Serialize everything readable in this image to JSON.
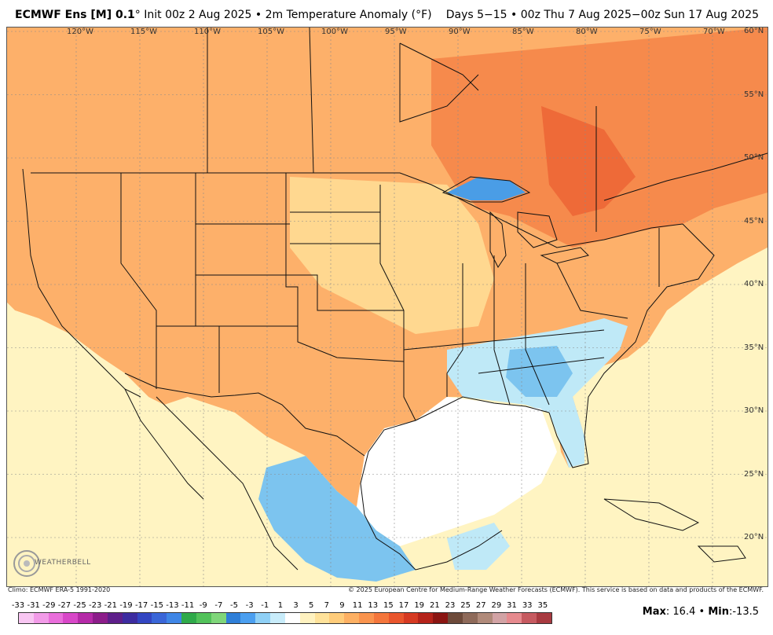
{
  "header": {
    "model": "ECMWF Ens [M] 0.1",
    "init_text": "° Init 00z 2 Aug 2025 • 2m Temperature Anomaly (°F)",
    "period": "Days 5−15 • 00z Thu 7 Aug 2025−00z Sun 17 Aug 2025"
  },
  "map": {
    "longitude_labels": [
      {
        "text": "120°W",
        "lon": -120
      },
      {
        "text": "115°W",
        "lon": -115
      },
      {
        "text": "110°W",
        "lon": -110
      },
      {
        "text": "105°W",
        "lon": -105
      },
      {
        "text": "100°W",
        "lon": -100
      },
      {
        "text": "95°W",
        "lon": -95
      },
      {
        "text": "90°W",
        "lon": -90
      },
      {
        "text": "85°W",
        "lon": -85
      },
      {
        "text": "80°W",
        "lon": -80
      },
      {
        "text": "75°W",
        "lon": -75
      },
      {
        "text": "70°W",
        "lon": -70
      }
    ],
    "latitude_labels": [
      {
        "text": "60°N",
        "lat": 60
      },
      {
        "text": "55°N",
        "lat": 55
      },
      {
        "text": "50°N",
        "lat": 50
      },
      {
        "text": "45°N",
        "lat": 45
      },
      {
        "text": "40°N",
        "lat": 40
      },
      {
        "text": "35°N",
        "lat": 35
      },
      {
        "text": "30°N",
        "lat": 30
      },
      {
        "text": "25°N",
        "lat": 25
      },
      {
        "text": "20°N",
        "lat": 20
      }
    ],
    "colors": {
      "ocean_neutral": "#fff4c2",
      "warm_light": "#ffd890",
      "warm": "#fdb06a",
      "warm_strong": "#f68a4c",
      "hot": "#ee6a38",
      "cool_light": "#bfe9f7",
      "cool": "#7cc4ef",
      "cool_strong": "#4a9de6",
      "neutral": "#ffffff"
    }
  },
  "footer": {
    "climo": "Climo: ECMWF ERA-5 1991-2020",
    "copyright": "© 2025 European Centre for Medium-Range Weather Forecasts (ECMWF). This service is based on data and products of the ECMWF."
  },
  "logo": {
    "text": "WEATHERBELL"
  },
  "scale": {
    "labels": [
      "-33",
      "-31",
      "-29",
      "-27",
      "-25",
      "-23",
      "-21",
      "-19",
      "-17",
      "-15",
      "-13",
      "-11",
      "-9",
      "-7",
      "-5",
      "-3",
      "-1",
      "1",
      "3",
      "5",
      "7",
      "9",
      "11",
      "13",
      "15",
      "17",
      "19",
      "21",
      "23",
      "25",
      "27",
      "29",
      "31",
      "33",
      "35"
    ],
    "colors": [
      "#f8c6f2",
      "#f29be8",
      "#e96edb",
      "#d847c8",
      "#b52aa8",
      "#8c1d8a",
      "#5e1f8a",
      "#3d2ca0",
      "#3346c2",
      "#3a66d8",
      "#3f86e6",
      "#2faa4a",
      "#52c25a",
      "#7fd67a",
      "#2f7fd8",
      "#4b9ff0",
      "#8fd0f6",
      "#c8ecfa",
      "#ffffff",
      "#fff2c0",
      "#ffe29a",
      "#ffcc7a",
      "#fdb063",
      "#fa944e",
      "#f4763c",
      "#e9562d",
      "#d63a22",
      "#b5231a",
      "#8a1512",
      "#6d4a3a",
      "#8e6a5a",
      "#b08a7a",
      "#d2a3a5",
      "#e68a8e",
      "#c65a60",
      "#a83a40"
    ]
  },
  "stats": {
    "max_label": "Max",
    "max_value": "16.4",
    "separator": "•",
    "min_label": "Min",
    "min_value": "-13.5"
  }
}
